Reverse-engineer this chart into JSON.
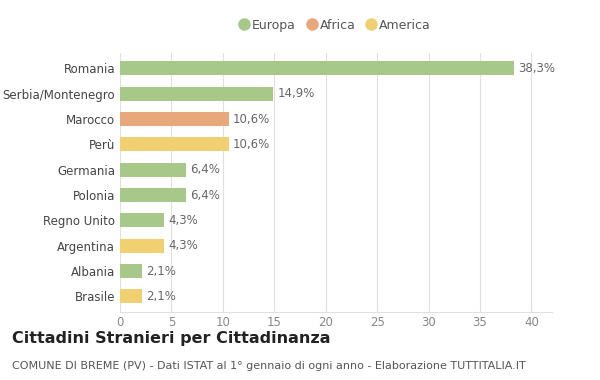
{
  "categories": [
    "Romania",
    "Serbia/Montenegro",
    "Marocco",
    "Perù",
    "Germania",
    "Polonia",
    "Regno Unito",
    "Argentina",
    "Albania",
    "Brasile"
  ],
  "values": [
    38.3,
    14.9,
    10.6,
    10.6,
    6.4,
    6.4,
    4.3,
    4.3,
    2.1,
    2.1
  ],
  "labels": [
    "38,3%",
    "14,9%",
    "10,6%",
    "10,6%",
    "6,4%",
    "6,4%",
    "4,3%",
    "4,3%",
    "2,1%",
    "2,1%"
  ],
  "colors": [
    "#a8c88a",
    "#a8c88a",
    "#e8a87c",
    "#f0d070",
    "#a8c88a",
    "#a8c88a",
    "#a8c88a",
    "#f0d070",
    "#a8c88a",
    "#f0d070"
  ],
  "legend": [
    {
      "label": "Europa",
      "color": "#a8c88a"
    },
    {
      "label": "Africa",
      "color": "#e8a87c"
    },
    {
      "label": "America",
      "color": "#f0d070"
    }
  ],
  "title": "Cittadini Stranieri per Cittadinanza",
  "subtitle": "COMUNE DI BREME (PV) - Dati ISTAT al 1° gennaio di ogni anno - Elaborazione TUTTITALIA.IT",
  "xlim": [
    0,
    42
  ],
  "xticks": [
    0,
    5,
    10,
    15,
    20,
    25,
    30,
    35,
    40
  ],
  "bg_color": "#ffffff",
  "grid_color": "#e0e0e0",
  "bar_height": 0.55,
  "label_fontsize": 8.5,
  "tick_fontsize": 8.5,
  "title_fontsize": 11.5,
  "subtitle_fontsize": 8.0
}
